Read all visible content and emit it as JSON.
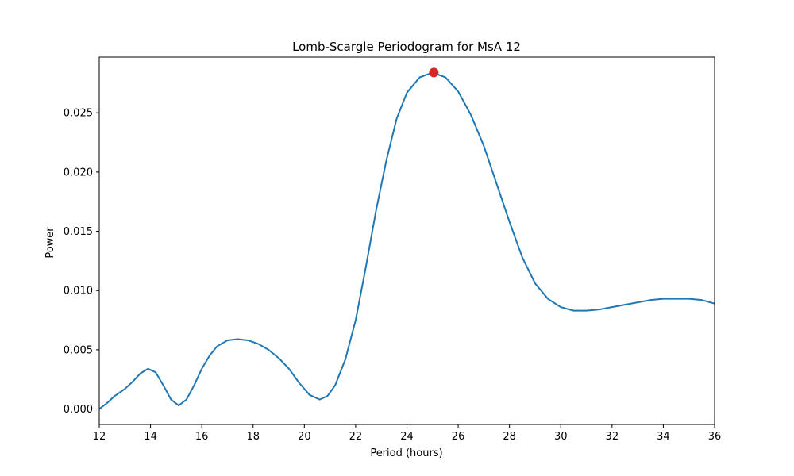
{
  "chart_data": {
    "type": "line",
    "title": "Lomb-Scargle Periodogram for MsA 12",
    "xlabel": "Period (hours)",
    "ylabel": "Power",
    "xlim": [
      12,
      36
    ],
    "ylim": [
      -0.0013,
      0.0297
    ],
    "grid": false,
    "x_ticks": [
      12,
      14,
      16,
      18,
      20,
      22,
      24,
      26,
      28,
      30,
      32,
      34,
      36
    ],
    "y_ticks": [
      0.0,
      0.005,
      0.01,
      0.015,
      0.02,
      0.025
    ],
    "x_tick_labels": [
      "12",
      "14",
      "16",
      "18",
      "20",
      "22",
      "24",
      "26",
      "28",
      "30",
      "32",
      "34",
      "36"
    ],
    "y_tick_labels": [
      "0.000",
      "0.005",
      "0.010",
      "0.015",
      "0.020",
      "0.025"
    ],
    "series": [
      {
        "color": "#1f77b4",
        "points": [
          [
            12.0,
            0.0
          ],
          [
            12.3,
            0.0005
          ],
          [
            12.6,
            0.0011
          ],
          [
            13.0,
            0.0017
          ],
          [
            13.3,
            0.0023
          ],
          [
            13.6,
            0.003
          ],
          [
            13.9,
            0.0034
          ],
          [
            14.2,
            0.0031
          ],
          [
            14.5,
            0.002
          ],
          [
            14.8,
            0.0008
          ],
          [
            15.1,
            0.0003
          ],
          [
            15.4,
            0.0008
          ],
          [
            15.7,
            0.002
          ],
          [
            16.0,
            0.0034
          ],
          [
            16.3,
            0.0045
          ],
          [
            16.6,
            0.0053
          ],
          [
            17.0,
            0.0058
          ],
          [
            17.4,
            0.0059
          ],
          [
            17.8,
            0.0058
          ],
          [
            18.2,
            0.0055
          ],
          [
            18.6,
            0.005
          ],
          [
            19.0,
            0.0043
          ],
          [
            19.4,
            0.0034
          ],
          [
            19.8,
            0.0022
          ],
          [
            20.2,
            0.0012
          ],
          [
            20.6,
            0.0008
          ],
          [
            20.9,
            0.0011
          ],
          [
            21.2,
            0.002
          ],
          [
            21.6,
            0.0042
          ],
          [
            22.0,
            0.0075
          ],
          [
            22.4,
            0.012
          ],
          [
            22.8,
            0.0168
          ],
          [
            23.2,
            0.021
          ],
          [
            23.6,
            0.0245
          ],
          [
            24.0,
            0.0267
          ],
          [
            24.5,
            0.028
          ],
          [
            25.0,
            0.0284
          ],
          [
            25.5,
            0.028
          ],
          [
            26.0,
            0.0268
          ],
          [
            26.5,
            0.0248
          ],
          [
            27.0,
            0.0222
          ],
          [
            27.5,
            0.019
          ],
          [
            28.0,
            0.0158
          ],
          [
            28.5,
            0.0128
          ],
          [
            29.0,
            0.0106
          ],
          [
            29.5,
            0.0093
          ],
          [
            30.0,
            0.0086
          ],
          [
            30.5,
            0.0083
          ],
          [
            31.0,
            0.0083
          ],
          [
            31.5,
            0.0084
          ],
          [
            32.0,
            0.0086
          ],
          [
            32.5,
            0.0088
          ],
          [
            33.0,
            0.009
          ],
          [
            33.5,
            0.0092
          ],
          [
            34.0,
            0.0093
          ],
          [
            34.5,
            0.0093
          ],
          [
            35.0,
            0.0093
          ],
          [
            35.5,
            0.0092
          ],
          [
            36.0,
            0.0089
          ]
        ]
      }
    ],
    "peak_marker": {
      "x": 25.05,
      "y": 0.0284,
      "color": "#d62728"
    }
  }
}
